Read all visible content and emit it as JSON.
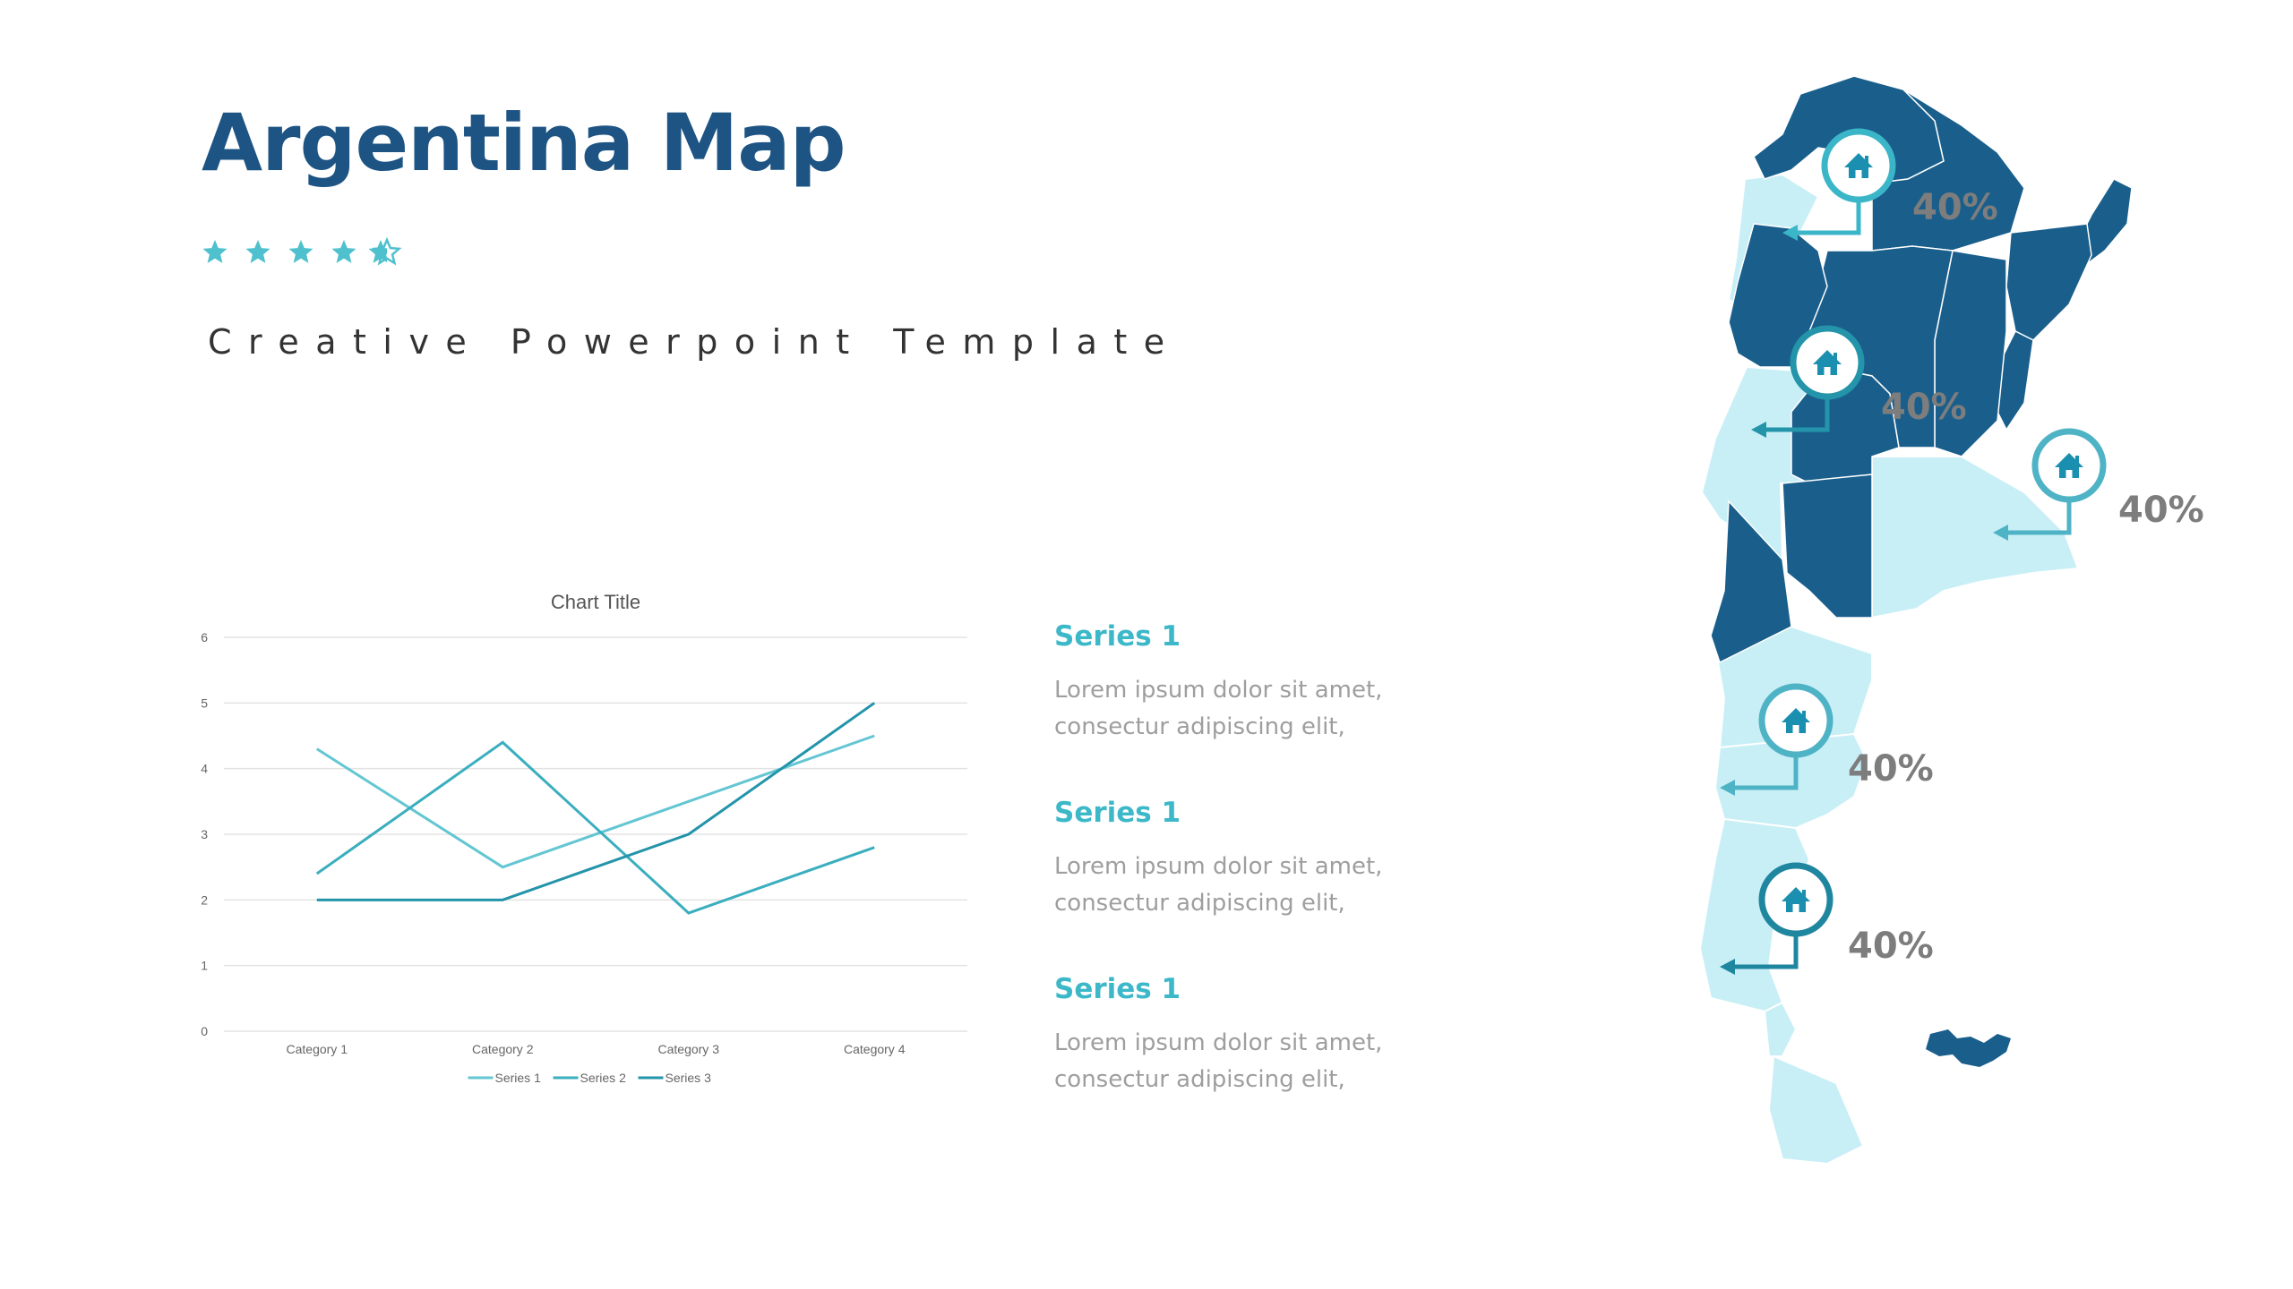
{
  "slide": {
    "title": "Argentina Map",
    "subtitle": "Creative Powerpoint Template",
    "rating": 4.5
  },
  "colors": {
    "dark_blue": "#1a5f8c",
    "light_blue": "#c8eff6",
    "teal": "#3cb8c9",
    "title": "#1d5484",
    "grey_text": "#9e9e9e",
    "pct_text": "#7d7d7d"
  },
  "chart_data": {
    "type": "line",
    "title": "Chart Title",
    "categories": [
      "Category 1",
      "Category 2",
      "Category 3",
      "Category 4"
    ],
    "series": [
      {
        "name": "Series 1",
        "values": [
          4.3,
          2.5,
          3.5,
          4.5
        ],
        "color": "#63c6d2"
      },
      {
        "name": "Series 2",
        "values": [
          2.4,
          4.4,
          1.8,
          2.8
        ],
        "color": "#3aaebe"
      },
      {
        "name": "Series 3",
        "values": [
          2.0,
          2.0,
          3.0,
          5.0
        ],
        "color": "#2394aa"
      }
    ],
    "ylim": [
      0,
      6
    ],
    "yticks": [
      "0",
      "1",
      "2",
      "3",
      "4",
      "5",
      "6"
    ],
    "grid": true,
    "legend": "bottom"
  },
  "series_list": [
    {
      "heading": "Series 1",
      "text": "Lorem ipsum dolor sit amet,\nconsectur adipiscing elit,"
    },
    {
      "heading": "Series 1",
      "text": "Lorem ipsum dolor sit amet,\nconsectur adipiscing elit,"
    },
    {
      "heading": "Series 1",
      "text": "Lorem ipsum dolor sit amet,\nconsectur adipiscing elit,"
    }
  ],
  "map": {
    "markers": [
      {
        "label": "40%",
        "icon": "home-icon"
      },
      {
        "label": "40%",
        "icon": "home-icon"
      },
      {
        "label": "40%",
        "icon": "home-icon"
      },
      {
        "label": "40%",
        "icon": "home-icon"
      },
      {
        "label": "40%",
        "icon": "home-icon"
      }
    ]
  }
}
